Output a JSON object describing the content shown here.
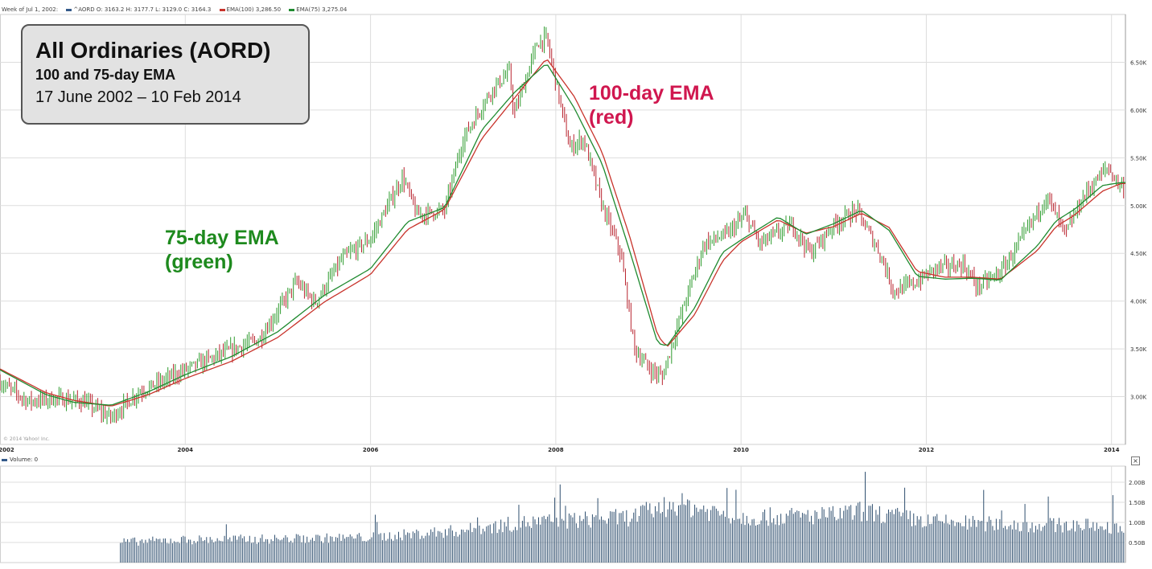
{
  "header": {
    "week": "Week of Jul 1, 2002:",
    "ohlc": "^AORD O: 3163.2 H: 3177.7 L: 3129.0 C: 3164.3",
    "ema100": "EMA(100) 3,286.50",
    "ema75": "EMA(75) 3,275.04"
  },
  "title_box": {
    "title": "All Ordinaries (AORD)",
    "subtitle": "100 and 75-day EMA",
    "date_range": "17 June 2002 – 10 Feb 2014"
  },
  "annotations": {
    "ema100_line1": "100-day EMA",
    "ema100_line2": "(red)",
    "ema75_line1": "75-day EMA",
    "ema75_line2": "(green)"
  },
  "copyright": "© 2014 Yahoo! Inc.",
  "volume_header": "Volume: 0",
  "close_icon": "close-icon",
  "colors": {
    "price_bars": "#2e9b2e",
    "price_bars_down": "#b8232e",
    "ema100": "#c8332b",
    "ema75": "#1f8a2f",
    "volume": "#2f4f6f",
    "ann_red": "#d0174f",
    "ann_green": "#1e8a1e",
    "grid": "#dddddd"
  },
  "chart_data": {
    "type": "line",
    "title": "All Ordinaries (AORD)",
    "x_tick_labels": [
      "2002",
      "2004",
      "2006",
      "2008",
      "2010",
      "2012",
      "2014"
    ],
    "y_tick_labels": [
      "3.00K",
      "3.50K",
      "4.00K",
      "4.50K",
      "5.00K",
      "5.50K",
      "6.00K",
      "6.50K"
    ],
    "y_ticks": [
      3000,
      3500,
      4000,
      4500,
      5000,
      5500,
      6000,
      6500
    ],
    "ylim": [
      2500,
      7000
    ],
    "xlim": [
      2002.0,
      2014.15
    ],
    "series": [
      {
        "name": "EMA(100)",
        "color": "#c8332b",
        "x": [
          2002.0,
          2002.5,
          2002.8,
          2003.2,
          2003.6,
          2004.0,
          2004.5,
          2005.0,
          2005.5,
          2006.0,
          2006.4,
          2006.8,
          2007.2,
          2007.55,
          2007.9,
          2008.2,
          2008.5,
          2008.8,
          2009.1,
          2009.2,
          2009.5,
          2009.8,
          2010.0,
          2010.4,
          2010.7,
          2011.0,
          2011.3,
          2011.6,
          2011.9,
          2012.2,
          2012.5,
          2012.8,
          2013.2,
          2013.4,
          2013.6,
          2013.9,
          2014.1
        ],
        "values": [
          3290,
          3040,
          2960,
          2900,
          3020,
          3190,
          3370,
          3620,
          3990,
          4280,
          4750,
          4960,
          5700,
          6120,
          6540,
          6140,
          5560,
          4670,
          3640,
          3520,
          3860,
          4420,
          4620,
          4850,
          4710,
          4780,
          4920,
          4770,
          4310,
          4250,
          4250,
          4230,
          4530,
          4780,
          4900,
          5150,
          5230
        ]
      },
      {
        "name": "EMA(75)",
        "color": "#1f8a2f",
        "x": [
          2002.0,
          2002.5,
          2002.8,
          2003.2,
          2003.6,
          2004.0,
          2004.5,
          2005.0,
          2005.5,
          2006.0,
          2006.4,
          2006.8,
          2007.2,
          2007.55,
          2007.9,
          2008.2,
          2008.5,
          2008.8,
          2009.1,
          2009.2,
          2009.5,
          2009.8,
          2010.0,
          2010.4,
          2010.7,
          2011.0,
          2011.3,
          2011.6,
          2011.9,
          2012.2,
          2012.5,
          2012.8,
          2013.2,
          2013.4,
          2013.6,
          2013.9,
          2014.1
        ],
        "values": [
          3280,
          3020,
          2940,
          2910,
          3050,
          3230,
          3420,
          3680,
          4060,
          4340,
          4830,
          4980,
          5790,
          6180,
          6490,
          6020,
          5440,
          4520,
          3560,
          3530,
          3930,
          4510,
          4640,
          4880,
          4700,
          4810,
          4950,
          4740,
          4260,
          4230,
          4240,
          4220,
          4580,
          4840,
          4960,
          5210,
          5240
        ]
      },
      {
        "name": "^AORD",
        "color": "#2e9b2e",
        "x": [
          2002.0,
          2002.3,
          2002.6,
          2002.9,
          2003.2,
          2003.5,
          2003.8,
          2004.0,
          2004.4,
          2004.8,
          2005.2,
          2005.4,
          2005.7,
          2006.0,
          2006.35,
          2006.5,
          2006.8,
          2007.0,
          2007.3,
          2007.5,
          2007.55,
          2007.65,
          2007.8,
          2007.9,
          2008.0,
          2008.15,
          2008.3,
          2008.5,
          2008.7,
          2008.85,
          2009.0,
          2009.15,
          2009.3,
          2009.6,
          2009.85,
          2010.05,
          2010.2,
          2010.55,
          2010.75,
          2011.0,
          2011.25,
          2011.5,
          2011.65,
          2011.9,
          2012.1,
          2012.4,
          2012.55,
          2012.8,
          2013.0,
          2013.3,
          2013.5,
          2013.7,
          2013.95,
          2014.1
        ],
        "values": [
          3150,
          2950,
          2980,
          2950,
          2780,
          3050,
          3180,
          3280,
          3450,
          3600,
          4200,
          3980,
          4450,
          4650,
          5300,
          4900,
          4950,
          5700,
          6200,
          6400,
          5950,
          6250,
          6700,
          6750,
          6300,
          5600,
          5700,
          5000,
          4500,
          3500,
          3300,
          3200,
          3700,
          4600,
          4700,
          4900,
          4600,
          4800,
          4500,
          4800,
          4950,
          4500,
          4100,
          4200,
          4350,
          4380,
          4150,
          4300,
          4600,
          5100,
          4700,
          5100,
          5400,
          5200
        ]
      }
    ],
    "volume": {
      "y_tick_labels": [
        "0.50B",
        "1.00B",
        "1.50B",
        "2.00B"
      ],
      "y_ticks": [
        0.5,
        1.0,
        1.5,
        2.0
      ],
      "ylim": [
        0,
        2.4
      ],
      "x": [
        2003.3,
        2004.0,
        2005.0,
        2006.0,
        2007.0,
        2007.6,
        2008.0,
        2008.8,
        2009.0,
        2009.3,
        2009.6,
        2010.0,
        2011.0,
        2011.3,
        2011.6,
        2012.0,
        2013.0,
        2013.6,
        2014.1
      ],
      "values": [
        0.52,
        0.58,
        0.6,
        0.64,
        0.82,
        1.0,
        1.05,
        1.15,
        1.3,
        1.5,
        1.35,
        1.15,
        1.2,
        1.3,
        1.2,
        1.05,
        0.95,
        0.95,
        0.9
      ]
    }
  }
}
